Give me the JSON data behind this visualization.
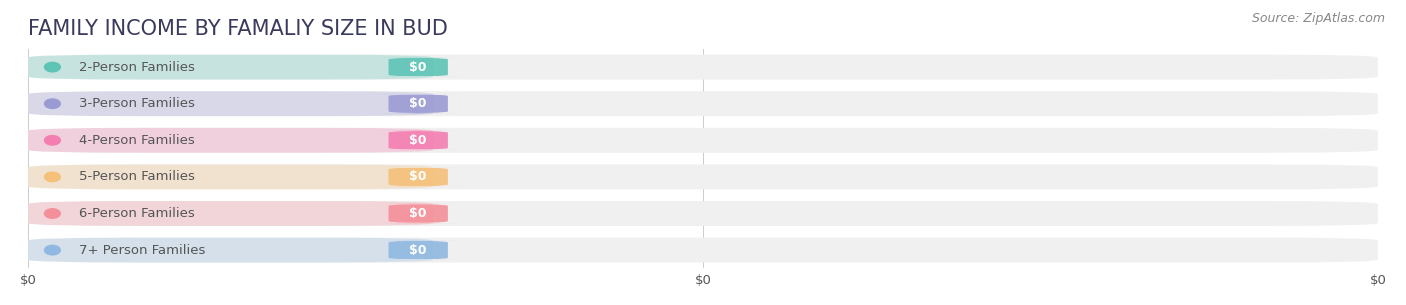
{
  "title": "FAMILY INCOME BY FAMALIY SIZE IN BUD",
  "source": "Source: ZipAtlas.com",
  "categories": [
    "2-Person Families",
    "3-Person Families",
    "4-Person Families",
    "5-Person Families",
    "6-Person Families",
    "7+ Person Families"
  ],
  "values": [
    0,
    0,
    0,
    0,
    0,
    0
  ],
  "bar_colors": [
    "#5ec4b6",
    "#9b9bd4",
    "#f47eb0",
    "#f5c07a",
    "#f4909a",
    "#90b8e0"
  ],
  "bar_bg_color": "#f0f0f0",
  "background_color": "#ffffff",
  "title_fontsize": 15,
  "label_fontsize": 9.5,
  "source_fontsize": 9,
  "title_color": "#3a3a5c",
  "label_color": "#555555",
  "value_label_color": "#ffffff",
  "source_color": "#888888",
  "xtick_labels": [
    "$0",
    "$0",
    "$0"
  ],
  "xtick_positions": [
    0.0,
    0.5,
    1.0
  ],
  "xlim": [
    0.0,
    1.0
  ]
}
